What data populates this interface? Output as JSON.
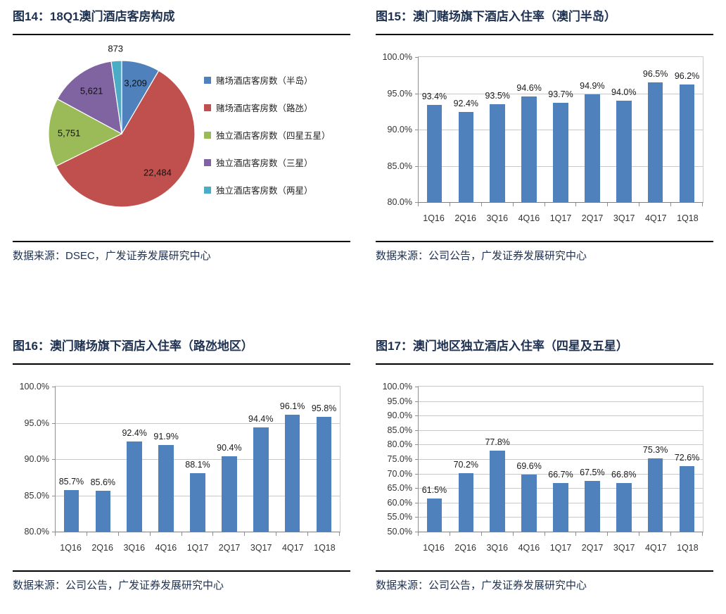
{
  "theme": {
    "title_color": "#1e3150",
    "source_color": "#1e3150",
    "rule_color": "#000000",
    "axis_label_color": "#333333",
    "data_label_color": "#1a1a1a",
    "grid_color": "#c9c9c9",
    "bar_color": "#4F81BD"
  },
  "panels": [
    {
      "title": "图14：18Q1澳门酒店客房构成",
      "source": "数据来源：DSEC，广发证券发展研究中心",
      "chart_data": {
        "type": "pie",
        "labels": [
          "赌场酒店客房数（半岛）",
          "赌场酒店客房数（路氹）",
          "独立酒店客房数（四星五星）",
          "独立酒店客房数（三星）",
          "独立酒店客房数（两星）"
        ],
        "values": [
          3209,
          22484,
          5751,
          5621,
          873
        ],
        "value_labels": [
          "3,209",
          "22,484",
          "5,751",
          "5,621",
          "873"
        ],
        "colors": [
          "#4F81BD",
          "#C0504D",
          "#9BBB59",
          "#8064A2",
          "#4BACC6"
        ],
        "legend_position": "right",
        "start_angle_deg": 0,
        "direction": "clockwise"
      }
    },
    {
      "title": "图15：澳门赌场旗下酒店入住率（澳门半岛）",
      "source": "数据来源：公司公告，广发证券发展研究中心",
      "chart_data": {
        "type": "bar",
        "categories": [
          "1Q16",
          "2Q16",
          "3Q16",
          "4Q16",
          "1Q17",
          "2Q17",
          "3Q17",
          "4Q17",
          "1Q18"
        ],
        "values": [
          93.4,
          92.4,
          93.5,
          94.6,
          93.7,
          94.9,
          94.0,
          96.5,
          96.2
        ],
        "value_labels": [
          "93.4%",
          "92.4%",
          "93.5%",
          "94.6%",
          "93.7%",
          "94.9%",
          "94.0%",
          "96.5%",
          "96.2%"
        ],
        "ylim": [
          80,
          100
        ],
        "ytick_labels": [
          "100.0%",
          "95.0%",
          "90.0%",
          "85.0%",
          "80.0%"
        ],
        "bar_color": "#4F81BD",
        "grid": true,
        "xlabel": "",
        "ylabel": ""
      }
    },
    {
      "title": "图16：澳门赌场旗下酒店入住率（路氹地区）",
      "source": "数据来源：公司公告，广发证券发展研究中心",
      "chart_data": {
        "type": "bar",
        "categories": [
          "1Q16",
          "2Q16",
          "3Q16",
          "4Q16",
          "1Q17",
          "2Q17",
          "3Q17",
          "4Q17",
          "1Q18"
        ],
        "values": [
          85.7,
          85.6,
          92.4,
          91.9,
          88.1,
          90.4,
          94.4,
          96.1,
          95.8
        ],
        "value_labels": [
          "85.7%",
          "85.6%",
          "92.4%",
          "91.9%",
          "88.1%",
          "90.4%",
          "94.4%",
          "96.1%",
          "95.8%"
        ],
        "ylim": [
          80,
          100
        ],
        "ytick_labels": [
          "100.0%",
          "95.0%",
          "90.0%",
          "85.0%",
          "80.0%"
        ],
        "bar_color": "#4F81BD",
        "grid": true,
        "xlabel": "",
        "ylabel": ""
      }
    },
    {
      "title": "图17：澳门地区独立酒店入住率（四星及五星）",
      "source": "数据来源：公司公告，广发证券发展研究中心",
      "chart_data": {
        "type": "bar",
        "categories": [
          "1Q16",
          "2Q16",
          "3Q16",
          "4Q16",
          "1Q17",
          "2Q17",
          "3Q17",
          "4Q17",
          "1Q18"
        ],
        "values": [
          61.5,
          70.2,
          77.8,
          69.6,
          66.7,
          67.5,
          66.8,
          75.3,
          72.6
        ],
        "value_labels": [
          "61.5%",
          "70.2%",
          "77.8%",
          "69.6%",
          "66.7%",
          "67.5%",
          "66.8%",
          "75.3%",
          "72.6%"
        ],
        "ylim": [
          50,
          100
        ],
        "ytick_labels": [
          "100.0%",
          "95.0%",
          "90.0%",
          "85.0%",
          "80.0%",
          "75.0%",
          "70.0%",
          "65.0%",
          "60.0%",
          "55.0%",
          "50.0%"
        ],
        "bar_color": "#4F81BD",
        "grid": true,
        "xlabel": "",
        "ylabel": ""
      }
    }
  ]
}
